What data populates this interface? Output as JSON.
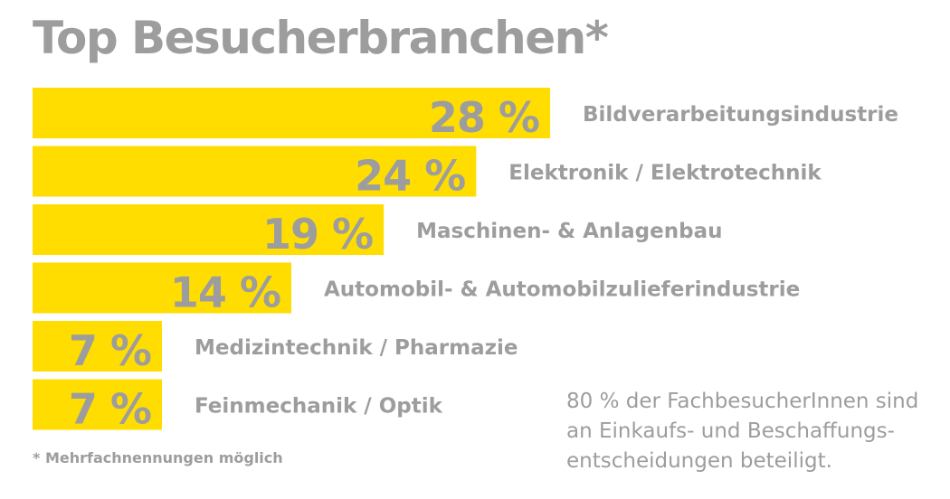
{
  "title": "Top Besucherbranchen*",
  "chart_data": {
    "type": "bar",
    "orientation": "horizontal",
    "categories": [
      "Bildverarbeitungsindustrie",
      "Elektronik / Elektrotechnik",
      "Maschinen- & Anlagenbau",
      "Automobil- & Automobilzulieferindustrie",
      "Medizintechnik / Pharmazie",
      "Feinmechanik / Optik"
    ],
    "values": [
      28,
      24,
      19,
      14,
      7,
      7
    ],
    "value_labels": [
      "28 %",
      "24 %",
      "19 %",
      "14 %",
      "7 %",
      "7 %"
    ],
    "unit": "%",
    "title": "Top Besucherbranchen*",
    "xlabel": "",
    "ylabel": "",
    "xlim": [
      0,
      28
    ],
    "grid": false,
    "legend": "none",
    "bar_color": "#ffdd00",
    "text_color": "#9d9d9d"
  },
  "footnote": "* Mehrfachnennungen möglich",
  "side_note": {
    "lines": [
      "80 % der FachbesucherInnen sind",
      "an Einkaufs- und Beschaffungs-",
      "entscheidungen beteiligt."
    ]
  }
}
